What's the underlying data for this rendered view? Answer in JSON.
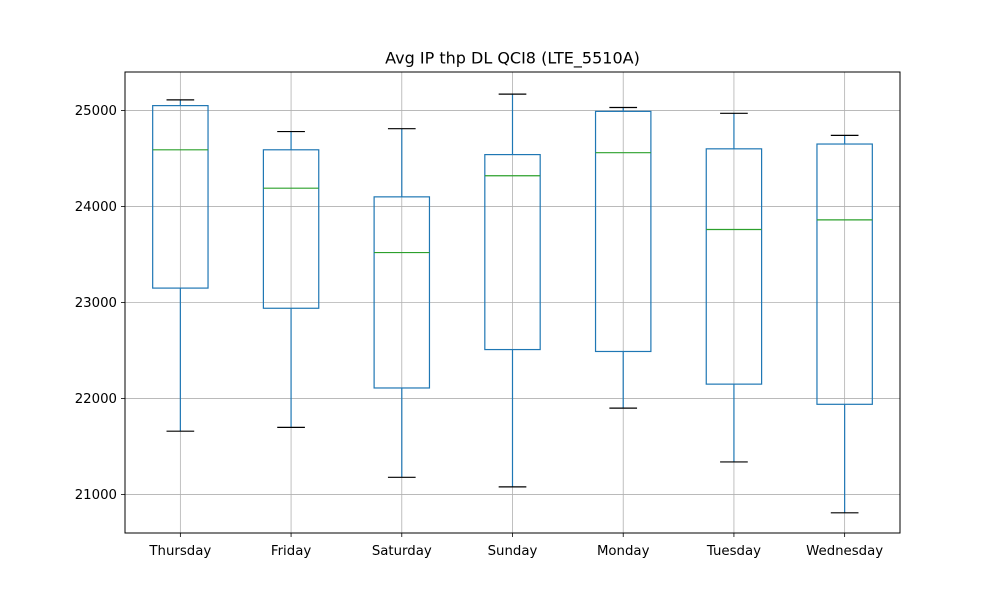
{
  "chart_data": {
    "type": "box",
    "title": "Avg IP thp DL QCI8 (LTE_5510A)",
    "xlabel": "",
    "ylabel": "",
    "categories": [
      "Thursday",
      "Friday",
      "Saturday",
      "Sunday",
      "Monday",
      "Tuesday",
      "Wednesday"
    ],
    "boxes": [
      {
        "category": "Thursday",
        "whisker_low": 21660,
        "q1": 23150,
        "median": 24590,
        "q3": 25050,
        "whisker_high": 25110
      },
      {
        "category": "Friday",
        "whisker_low": 21700,
        "q1": 22940,
        "median": 24190,
        "q3": 24590,
        "whisker_high": 24780
      },
      {
        "category": "Saturday",
        "whisker_low": 21180,
        "q1": 22110,
        "median": 23520,
        "q3": 24100,
        "whisker_high": 24810
      },
      {
        "category": "Sunday",
        "whisker_low": 21080,
        "q1": 22510,
        "median": 24320,
        "q3": 24540,
        "whisker_high": 25170
      },
      {
        "category": "Monday",
        "whisker_low": 21900,
        "q1": 22490,
        "median": 24560,
        "q3": 24990,
        "whisker_high": 25030
      },
      {
        "category": "Tuesday",
        "whisker_low": 21340,
        "q1": 22150,
        "median": 23760,
        "q3": 24600,
        "whisker_high": 24970
      },
      {
        "category": "Wednesday",
        "whisker_low": 20810,
        "q1": 21940,
        "median": 23860,
        "q3": 24650,
        "whisker_high": 24740
      }
    ],
    "yticks": [
      21000,
      22000,
      23000,
      24000,
      25000
    ],
    "ylim": [
      20600,
      25400
    ],
    "grid": true,
    "colors": {
      "box": "#1f77b4",
      "median": "#2ca02c",
      "caps": "#000000",
      "grid": "#b0b0b0",
      "axes": "#000000"
    }
  }
}
